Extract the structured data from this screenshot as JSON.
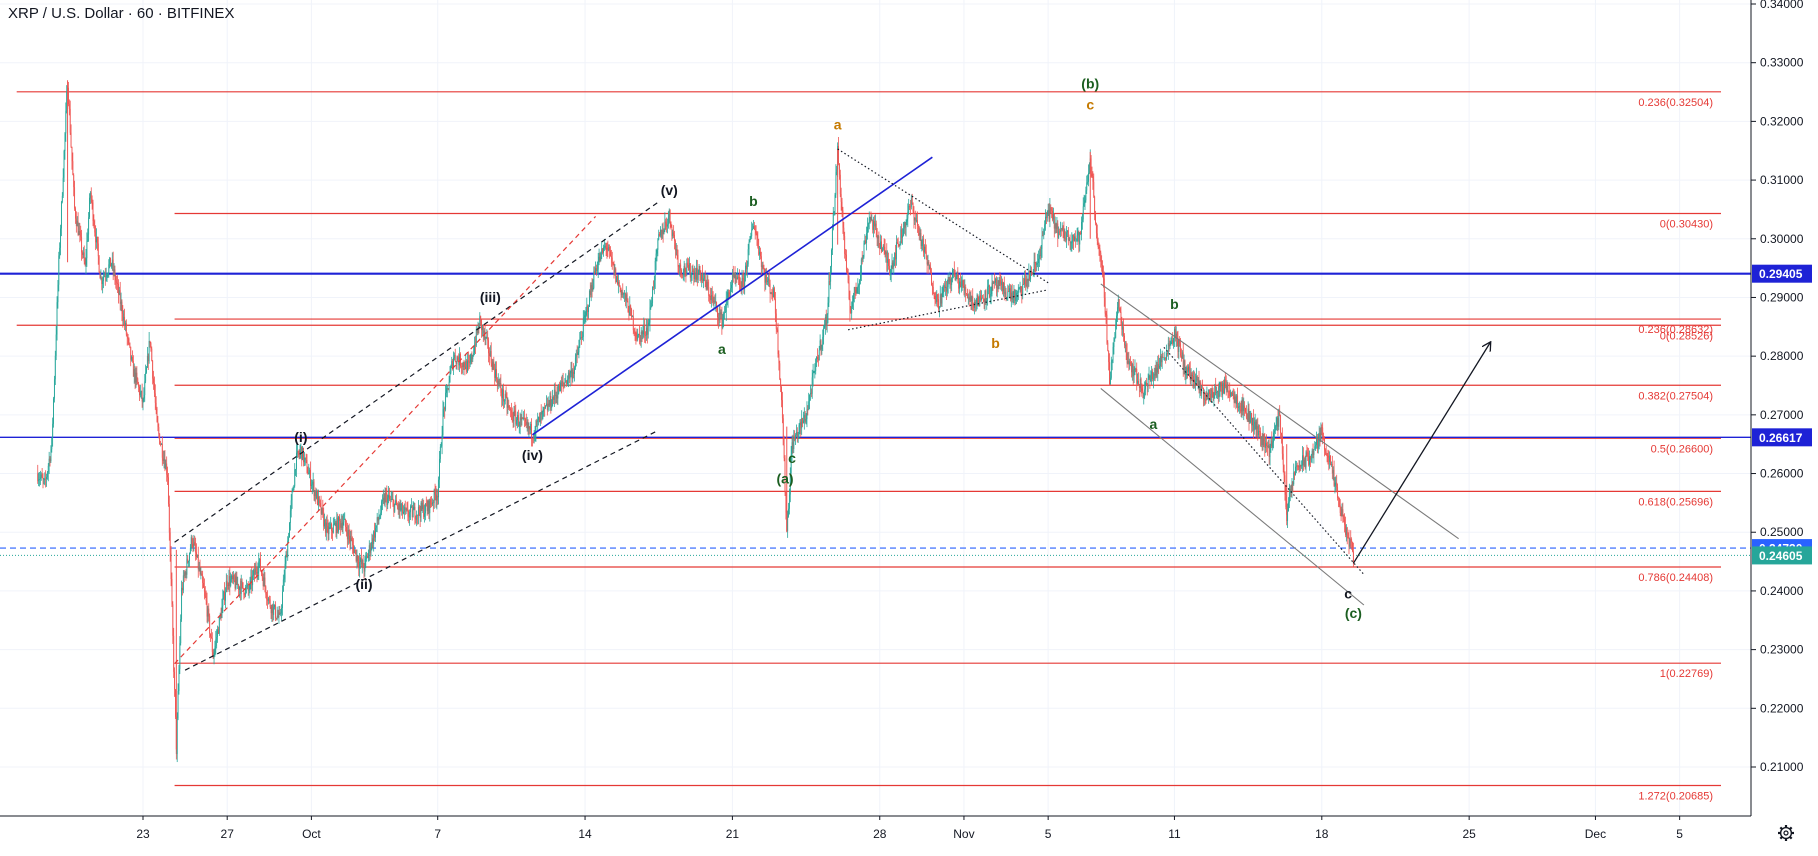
{
  "symbol_title": "XRP / U.S. Dollar · 60 · BITFINEX",
  "settings_icon": "gear-icon",
  "colors": {
    "fib": "#e53935",
    "blue_line": "#1e22d6",
    "candle_up": "#26a69a",
    "candle_down": "#ef5350",
    "wave_orange": "#c57a00",
    "wave_green": "#1b5e20",
    "wave_black": "#131722",
    "price_dashed": "#2962ff",
    "price_last": "#26a69a",
    "grid": "#f0f3fa"
  },
  "chart_data": {
    "type": "candlestick",
    "y_axis": {
      "ticks": [
        "0.34000",
        "0.33000",
        "0.32000",
        "0.31000",
        "0.30000",
        "0.29000",
        "0.28000",
        "0.27000",
        "0.26000",
        "0.25000",
        "0.24000",
        "0.23000",
        "0.22000",
        "0.21000"
      ],
      "ylim": [
        0.2033,
        0.3409
      ]
    },
    "x_axis": {
      "ticks": [
        "23",
        "27",
        "Oct",
        "7",
        "14",
        "21",
        "28",
        "Nov",
        "5",
        "11",
        "18",
        "25",
        "Dec",
        "5"
      ]
    },
    "price_path": [
      {
        "t": "Sep 18 00:00",
        "p": 0.26
      },
      {
        "t": "Sep 18 08:00",
        "p": 0.258
      },
      {
        "t": "Sep 18 16:00",
        "p": 0.265
      },
      {
        "t": "Sep 19 00:00",
        "p": 0.296
      },
      {
        "t": "Sep 19 10:00",
        "p": 0.327
      },
      {
        "t": "Sep 19 18:00",
        "p": 0.305
      },
      {
        "t": "Sep 20 06:00",
        "p": 0.295
      },
      {
        "t": "Sep 20 12:00",
        "p": 0.308
      },
      {
        "t": "Sep 21 00:00",
        "p": 0.293
      },
      {
        "t": "Sep 21 12:00",
        "p": 0.296
      },
      {
        "t": "Sep 22 00:00",
        "p": 0.288
      },
      {
        "t": "Sep 22 12:00",
        "p": 0.278
      },
      {
        "t": "Sep 23 00:00",
        "p": 0.272
      },
      {
        "t": "Sep 23 08:00",
        "p": 0.283
      },
      {
        "t": "Sep 23 16:00",
        "p": 0.268
      },
      {
        "t": "Sep 24 04:00",
        "p": 0.26
      },
      {
        "t": "Sep 24 14:00",
        "p": 0.213
      },
      {
        "t": "Sep 24 20:00",
        "p": 0.24
      },
      {
        "t": "Sep 25 08:00",
        "p": 0.249
      },
      {
        "t": "Sep 26 00:00",
        "p": 0.238
      },
      {
        "t": "Sep 26 08:00",
        "p": 0.229
      },
      {
        "t": "Sep 27 00:00",
        "p": 0.242
      },
      {
        "t": "Sep 28 00:00",
        "p": 0.24
      },
      {
        "t": "Sep 28 12:00",
        "p": 0.245
      },
      {
        "t": "Sep 29 00:00",
        "p": 0.238
      },
      {
        "t": "Sep 29 12:00",
        "p": 0.235
      },
      {
        "t": "Sep 30 06:00",
        "p": 0.262
      },
      {
        "t": "Sep 30 12:00",
        "p": 0.264
      },
      {
        "t": "Oct 1 06:00",
        "p": 0.256
      },
      {
        "t": "Oct 1 18:00",
        "p": 0.25
      },
      {
        "t": "Oct 2 12:00",
        "p": 0.252
      },
      {
        "t": "Oct 3 06:00",
        "p": 0.245
      },
      {
        "t": "Oct 3 12:00",
        "p": 0.244
      },
      {
        "t": "Oct 4 12:00",
        "p": 0.256
      },
      {
        "t": "Oct 5 12:00",
        "p": 0.253
      },
      {
        "t": "Oct 6 12:00",
        "p": 0.254
      },
      {
        "t": "Oct 7 00:00",
        "p": 0.257
      },
      {
        "t": "Oct 7 06:00",
        "p": 0.27
      },
      {
        "t": "Oct 7 18:00",
        "p": 0.28
      },
      {
        "t": "Oct 8 12:00",
        "p": 0.278
      },
      {
        "t": "Oct 9 00:00",
        "p": 0.286
      },
      {
        "t": "Oct 9 12:00",
        "p": 0.28
      },
      {
        "t": "Oct 10 00:00",
        "p": 0.274
      },
      {
        "t": "Oct 10 12:00",
        "p": 0.27
      },
      {
        "t": "Oct 11 12:00",
        "p": 0.267
      },
      {
        "t": "Oct 12 12:00",
        "p": 0.273
      },
      {
        "t": "Oct 13 12:00",
        "p": 0.278
      },
      {
        "t": "Oct 14 12:00",
        "p": 0.295
      },
      {
        "t": "Oct 15 00:00",
        "p": 0.299
      },
      {
        "t": "Oct 15 12:00",
        "p": 0.293
      },
      {
        "t": "Oct 16 00:00",
        "p": 0.289
      },
      {
        "t": "Oct 16 12:00",
        "p": 0.283
      },
      {
        "t": "Oct 17 00:00",
        "p": 0.285
      },
      {
        "t": "Oct 17 12:00",
        "p": 0.3
      },
      {
        "t": "Oct 18 00:00",
        "p": 0.304
      },
      {
        "t": "Oct 18 12:00",
        "p": 0.295
      },
      {
        "t": "Oct 19 12:00",
        "p": 0.294
      },
      {
        "t": "Oct 20 12:00",
        "p": 0.286
      },
      {
        "t": "Oct 21 00:00",
        "p": 0.293
      },
      {
        "t": "Oct 21 12:00",
        "p": 0.292
      },
      {
        "t": "Oct 22 00:00",
        "p": 0.303
      },
      {
        "t": "Oct 22 12:00",
        "p": 0.294
      },
      {
        "t": "Oct 23 00:00",
        "p": 0.29
      },
      {
        "t": "Oct 23 08:00",
        "p": 0.273
      },
      {
        "t": "Oct 23 14:00",
        "p": 0.25
      },
      {
        "t": "Oct 23 20:00",
        "p": 0.265
      },
      {
        "t": "Oct 24 12:00",
        "p": 0.27
      },
      {
        "t": "Oct 25 00:00",
        "p": 0.279
      },
      {
        "t": "Oct 25 12:00",
        "p": 0.287
      },
      {
        "t": "Oct 26 00:00",
        "p": 0.315
      },
      {
        "t": "Oct 26 08:00",
        "p": 0.298
      },
      {
        "t": "Oct 26 14:00",
        "p": 0.288
      },
      {
        "t": "Oct 27 00:00",
        "p": 0.293
      },
      {
        "t": "Oct 27 12:00",
        "p": 0.304
      },
      {
        "t": "Oct 28 12:00",
        "p": 0.295
      },
      {
        "t": "Oct 29 12:00",
        "p": 0.306
      },
      {
        "t": "Oct 30 06:00",
        "p": 0.296
      },
      {
        "t": "Oct 30 18:00",
        "p": 0.289
      },
      {
        "t": "Oct 31 12:00",
        "p": 0.294
      },
      {
        "t": "Nov 1 12:00",
        "p": 0.289
      },
      {
        "t": "Nov 2 12:00",
        "p": 0.292
      },
      {
        "t": "Nov 3 12:00",
        "p": 0.29
      },
      {
        "t": "Nov 4 12:00",
        "p": 0.296
      },
      {
        "t": "Nov 5 00:00",
        "p": 0.305
      },
      {
        "t": "Nov 5 12:00",
        "p": 0.301
      },
      {
        "t": "Nov 6 12:00",
        "p": 0.3
      },
      {
        "t": "Nov 7 00:00",
        "p": 0.314
      },
      {
        "t": "Nov 7 08:00",
        "p": 0.3
      },
      {
        "t": "Nov 7 16:00",
        "p": 0.291
      },
      {
        "t": "Nov 7 22:00",
        "p": 0.276
      },
      {
        "t": "Nov 8 08:00",
        "p": 0.289
      },
      {
        "t": "Nov 8 18:00",
        "p": 0.28
      },
      {
        "t": "Nov 9 12:00",
        "p": 0.274
      },
      {
        "t": "Nov 10 12:00",
        "p": 0.28
      },
      {
        "t": "Nov 11 00:00",
        "p": 0.284
      },
      {
        "t": "Nov 11 12:00",
        "p": 0.278
      },
      {
        "t": "Nov 12 12:00",
        "p": 0.273
      },
      {
        "t": "Nov 13 12:00",
        "p": 0.275
      },
      {
        "t": "Nov 14 12:00",
        "p": 0.27
      },
      {
        "t": "Nov 15 12:00",
        "p": 0.264
      },
      {
        "t": "Nov 16 00:00",
        "p": 0.27
      },
      {
        "t": "Nov 16 08:00",
        "p": 0.253
      },
      {
        "t": "Nov 16 18:00",
        "p": 0.261
      },
      {
        "t": "Nov 17 12:00",
        "p": 0.263
      },
      {
        "t": "Nov 18 00:00",
        "p": 0.267
      },
      {
        "t": "Nov 18 12:00",
        "p": 0.26
      },
      {
        "t": "Nov 19 00:00",
        "p": 0.252
      },
      {
        "t": "Nov 19 12:00",
        "p": 0.246
      }
    ],
    "horizontal_levels": [
      {
        "label": "0.236(0.32504)",
        "value": 0.32504,
        "start": "Sep 17 00:00",
        "kind": "fib"
      },
      {
        "label": "0(0.30430)",
        "value": 0.3043,
        "start": "Sep 24 12:00",
        "kind": "fib"
      },
      {
        "label": "0.236(0.28632)",
        "value": 0.28632,
        "start": "Sep 24 12:00",
        "kind": "fib"
      },
      {
        "label": "0(0.28526)",
        "value": 0.28526,
        "start": "Sep 17 00:00",
        "kind": "fib"
      },
      {
        "label": "0.382(0.27504)",
        "value": 0.27504,
        "start": "Sep 24 12:00",
        "kind": "fib"
      },
      {
        "label": "0.5(0.26600)",
        "value": 0.266,
        "start": "Sep 24 12:00",
        "kind": "fib"
      },
      {
        "label": "0.618(0.25696)",
        "value": 0.25696,
        "start": "Sep 24 12:00",
        "kind": "fib"
      },
      {
        "label": "0.786(0.24408)",
        "value": 0.24408,
        "start": "Sep 24 12:00",
        "kind": "fib"
      },
      {
        "label": "1(0.22769)",
        "value": 0.22769,
        "start": "Sep 24 12:00",
        "kind": "fib"
      },
      {
        "label": "1.272(0.20685)",
        "value": 0.20685,
        "start": "Sep 24 12:00",
        "kind": "fib"
      }
    ],
    "price_badges": [
      {
        "label": "0.29405",
        "value": 0.29405,
        "color": "#1e22d6",
        "line": "solid-thick"
      },
      {
        "label": "0.26617",
        "value": 0.26617,
        "color": "#1e22d6",
        "line": "solid"
      },
      {
        "label": "0.24730",
        "value": 0.2473,
        "color": "#2962ff",
        "line": "dashed"
      },
      {
        "label": "0.24605",
        "value": 0.24605,
        "color": "#26a69a",
        "line": "dotted"
      }
    ],
    "wave_labels": [
      {
        "text": "(i)",
        "t": "Sep 30 12:00",
        "p": 0.2654,
        "color": "black"
      },
      {
        "text": "(ii)",
        "t": "Oct 3 12:00",
        "p": 0.2403,
        "color": "black"
      },
      {
        "text": "(iii)",
        "t": "Oct 9 12:00",
        "p": 0.2892,
        "color": "black"
      },
      {
        "text": "(iv)",
        "t": "Oct 11 12:00",
        "p": 0.2623,
        "color": "black"
      },
      {
        "text": "(v)",
        "t": "Oct 18 00:00",
        "p": 0.3075,
        "color": "black"
      },
      {
        "text": "a",
        "t": "Oct 20 12:00",
        "p": 0.2804,
        "color": "green"
      },
      {
        "text": "b",
        "t": "Oct 22 00:00",
        "p": 0.3056,
        "color": "green"
      },
      {
        "text": "c",
        "t": "Oct 23 20:00",
        "p": 0.2618,
        "color": "green"
      },
      {
        "text": "(a)",
        "t": "Oct 23 12:00",
        "p": 0.2583,
        "color": "green"
      },
      {
        "text": "a",
        "t": "Oct 26 00:00",
        "p": 0.3186,
        "color": "orange"
      },
      {
        "text": "b",
        "t": "Nov 2 12:00",
        "p": 0.2814,
        "color": "orange"
      },
      {
        "text": "(b)",
        "t": "Nov 7 00:00",
        "p": 0.3256,
        "color": "green"
      },
      {
        "text": "c",
        "t": "Nov 7 00:00",
        "p": 0.322,
        "color": "orange"
      },
      {
        "text": "a",
        "t": "Nov 10 00:00",
        "p": 0.2676,
        "color": "green"
      },
      {
        "text": "b",
        "t": "Nov 11 00:00",
        "p": 0.288,
        "color": "green"
      },
      {
        "text": "c",
        "t": "Nov 19 06:00",
        "p": 0.2387,
        "color": "black"
      },
      {
        "text": "(c)",
        "t": "Nov 19 12:00",
        "p": 0.2354,
        "color": "green"
      }
    ],
    "trend_lines": [
      {
        "from": {
          "t": "Sep 24 12:00",
          "p": 0.2483
        },
        "to": {
          "t": "Oct 17 12:00",
          "p": 0.3063
        },
        "color": "black",
        "style": "dashed"
      },
      {
        "from": {
          "t": "Sep 25 00:00",
          "p": 0.2265
        },
        "to": {
          "t": "Oct 17 12:00",
          "p": 0.2674
        },
        "color": "black",
        "style": "dashed"
      },
      {
        "from": {
          "t": "Sep 24 12:00",
          "p": 0.2276
        },
        "to": {
          "t": "Oct 14 12:00",
          "p": 0.3038
        },
        "color": "red",
        "style": "dashed"
      },
      {
        "from": {
          "t": "Oct 11 12:00",
          "p": 0.2666
        },
        "to": {
          "t": "Oct 30 12:00",
          "p": 0.3139
        },
        "color": "blue",
        "style": "solid"
      },
      {
        "from": {
          "t": "Oct 26 00:00",
          "p": 0.3153
        },
        "to": {
          "t": "Nov 5 00:00",
          "p": 0.2925
        },
        "color": "black",
        "style": "dotted"
      },
      {
        "from": {
          "t": "Oct 26 12:00",
          "p": 0.2845
        },
        "to": {
          "t": "Nov 5 00:00",
          "p": 0.2913
        },
        "color": "black",
        "style": "dotted"
      },
      {
        "from": {
          "t": "Nov 7 12:00",
          "p": 0.2923
        },
        "to": {
          "t": "Nov 24 12:00",
          "p": 0.2489
        },
        "color": "gray",
        "style": "solid"
      },
      {
        "from": {
          "t": "Nov 7 12:00",
          "p": 0.2745
        },
        "to": {
          "t": "Nov 20 00:00",
          "p": 0.2376
        },
        "color": "gray",
        "style": "solid"
      },
      {
        "from": {
          "t": "Nov 10 12:00",
          "p": 0.2815
        },
        "to": {
          "t": "Nov 20 00:00",
          "p": 0.2428
        },
        "color": "black",
        "style": "dotted"
      },
      {
        "from": {
          "t": "Nov 19 12:00",
          "p": 0.2447
        },
        "to": {
          "t": "Nov 26 00:00",
          "p": 0.2823
        },
        "color": "black",
        "style": "arrow"
      }
    ]
  }
}
